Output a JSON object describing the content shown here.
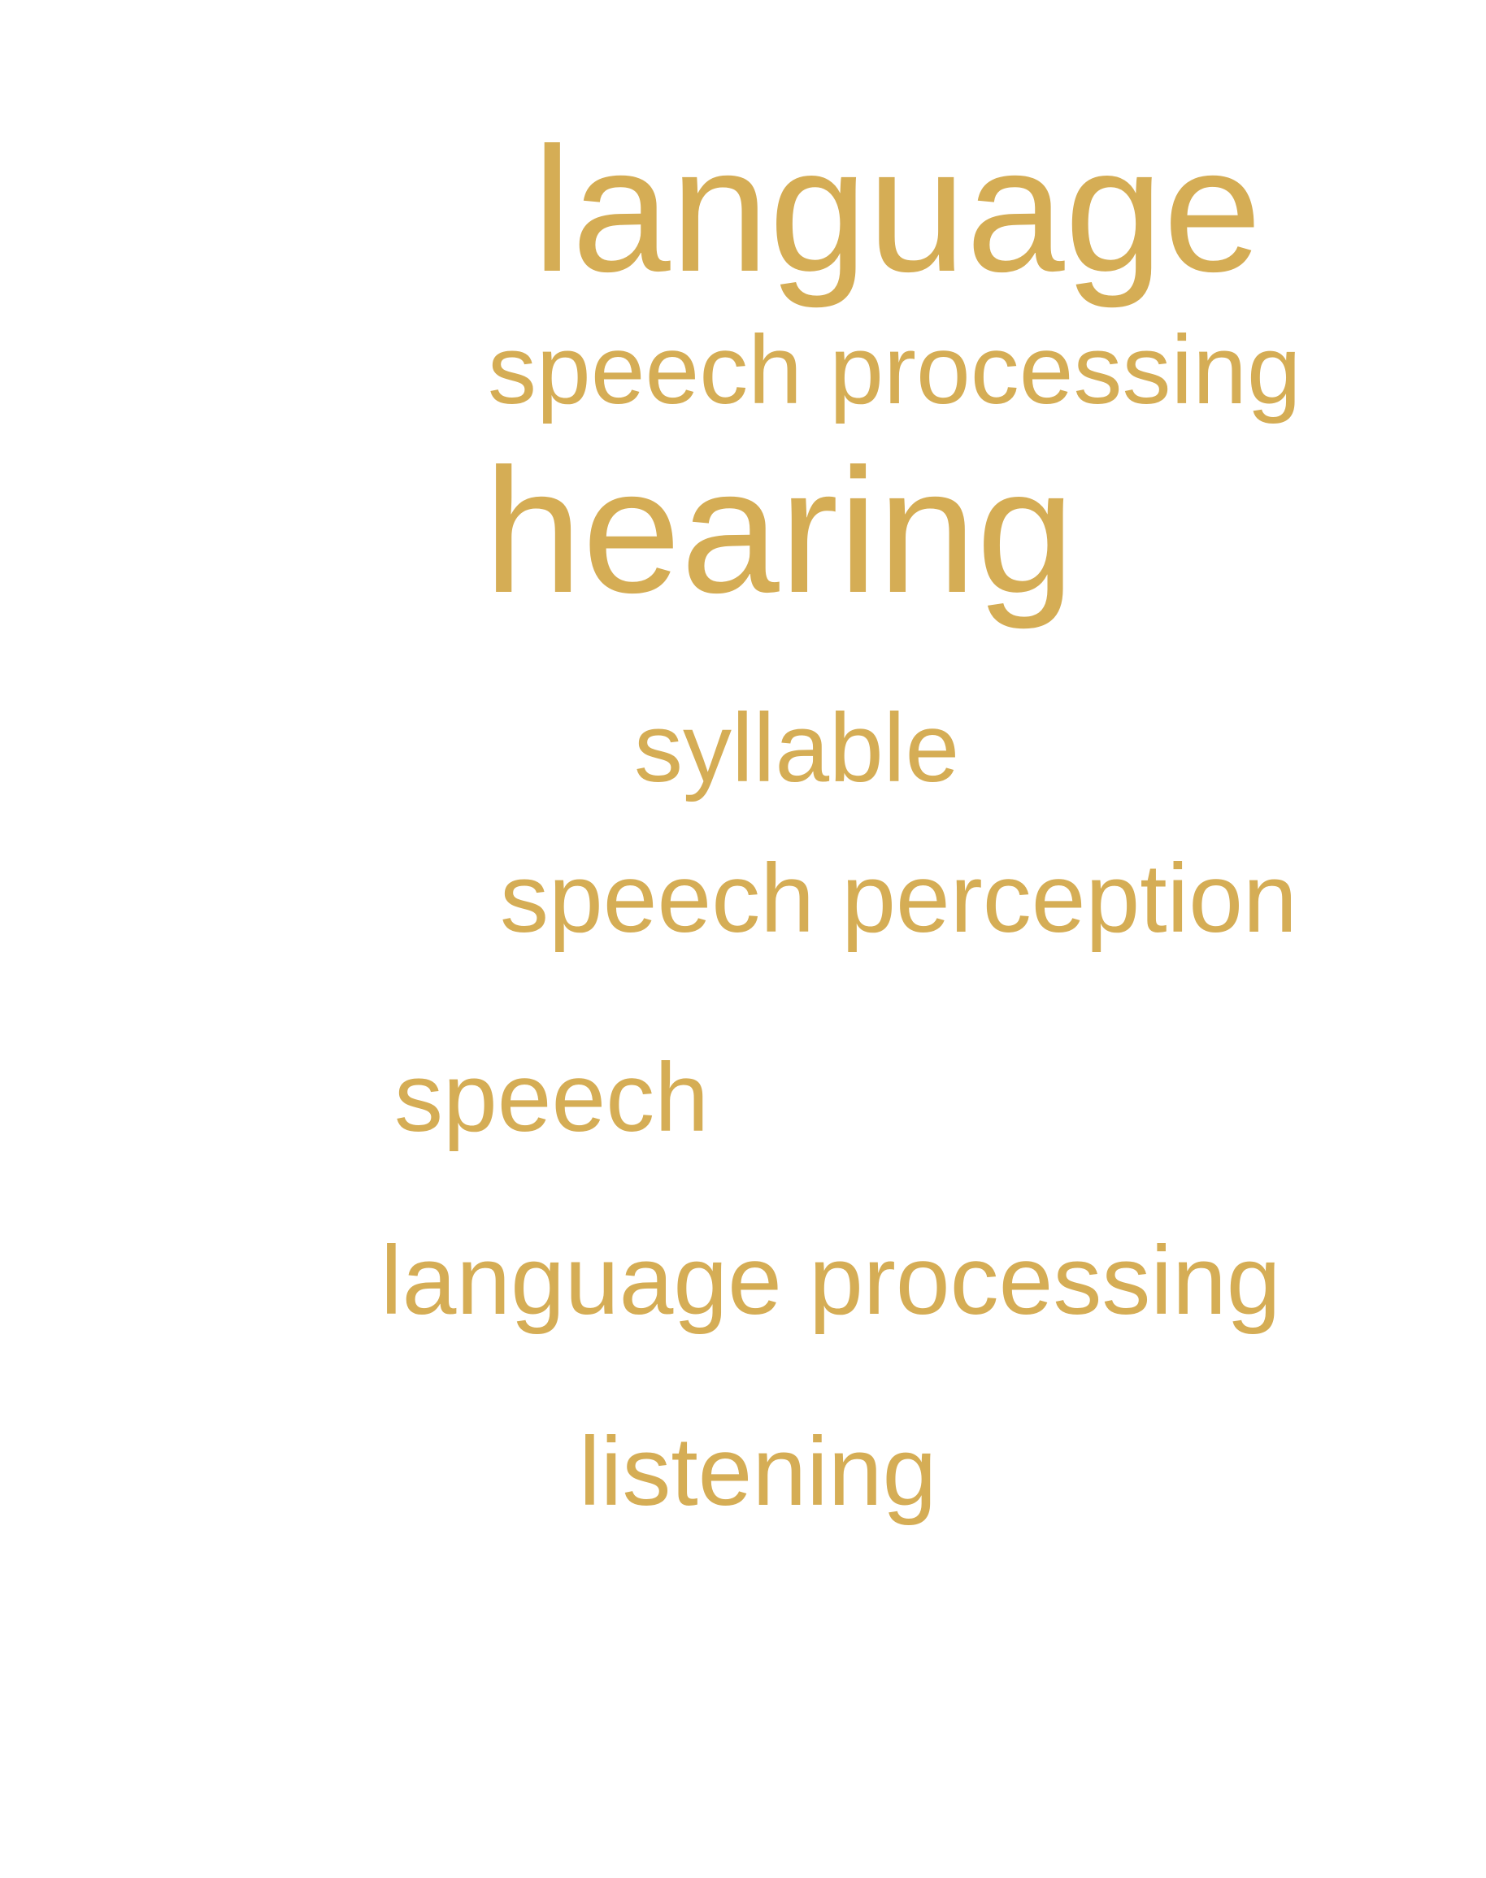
{
  "word_cloud": {
    "color": "#d5ad55",
    "words": [
      {
        "text": "language"
      },
      {
        "text": "speech processing"
      },
      {
        "text": "hearing"
      },
      {
        "text": "syllable"
      },
      {
        "text": "speech perception"
      },
      {
        "text": "speech"
      },
      {
        "text": "language processing"
      },
      {
        "text": "listening"
      }
    ]
  }
}
